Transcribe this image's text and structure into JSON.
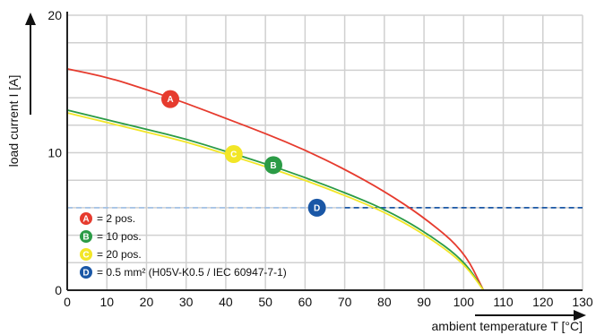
{
  "chart_data": {
    "type": "line",
    "xlabel": "ambient temperature T [°C]",
    "ylabel": "load current I [A]",
    "xlim": [
      0,
      130
    ],
    "ylim": [
      0,
      20
    ],
    "x_ticks": [
      "0",
      "10",
      "20",
      "30",
      "40",
      "50",
      "60",
      "70",
      "80",
      "90",
      "100",
      "110",
      "120",
      "130"
    ],
    "y_ticks": [
      "0",
      "10",
      "20"
    ],
    "grid": true,
    "legend_position": "bottom-left",
    "series": [
      {
        "id": "A",
        "name": "= 2 pos.",
        "color": "#e63b2e",
        "x": [
          0,
          10,
          20,
          30,
          40,
          50,
          60,
          70,
          80,
          90,
          100,
          105
        ],
        "y": [
          16.1,
          15.5,
          14.6,
          13.6,
          12.5,
          11.4,
          10.2,
          8.8,
          7.2,
          5.3,
          2.9,
          0.0
        ]
      },
      {
        "id": "B",
        "name": "= 10 pos.",
        "color": "#2b9b46",
        "x": [
          0,
          10,
          20,
          30,
          40,
          50,
          60,
          70,
          80,
          90,
          100,
          105
        ],
        "y": [
          13.1,
          12.4,
          11.7,
          11.0,
          10.1,
          9.2,
          8.2,
          7.1,
          5.9,
          4.3,
          2.2,
          0.0
        ]
      },
      {
        "id": "C",
        "name": "= 20 pos.",
        "color": "#f2e627",
        "x": [
          0,
          10,
          20,
          30,
          40,
          50,
          60,
          70,
          80,
          90,
          100,
          105
        ],
        "y": [
          12.9,
          12.2,
          11.5,
          10.8,
          9.9,
          9.0,
          8.0,
          6.9,
          5.7,
          4.1,
          2.0,
          0.0
        ]
      },
      {
        "id": "D",
        "name": "= 0.5 mm² (H05V-K0.5 / IEC 60947-7-1)",
        "color": "#1a57a6",
        "style": "dashed",
        "x": [
          0,
          130
        ],
        "y": [
          6.0,
          6.0
        ]
      }
    ],
    "badges": [
      {
        "letter": "A",
        "x": 26,
        "y": 13.9,
        "color": "#e63b2e"
      },
      {
        "letter": "B",
        "x": 52,
        "y": 9.1,
        "color": "#2b9b46"
      },
      {
        "letter": "C",
        "x": 42,
        "y": 9.9,
        "color": "#f2e627"
      },
      {
        "letter": "D",
        "x": 63,
        "y": 6.0,
        "color": "#1a57a6"
      }
    ]
  }
}
